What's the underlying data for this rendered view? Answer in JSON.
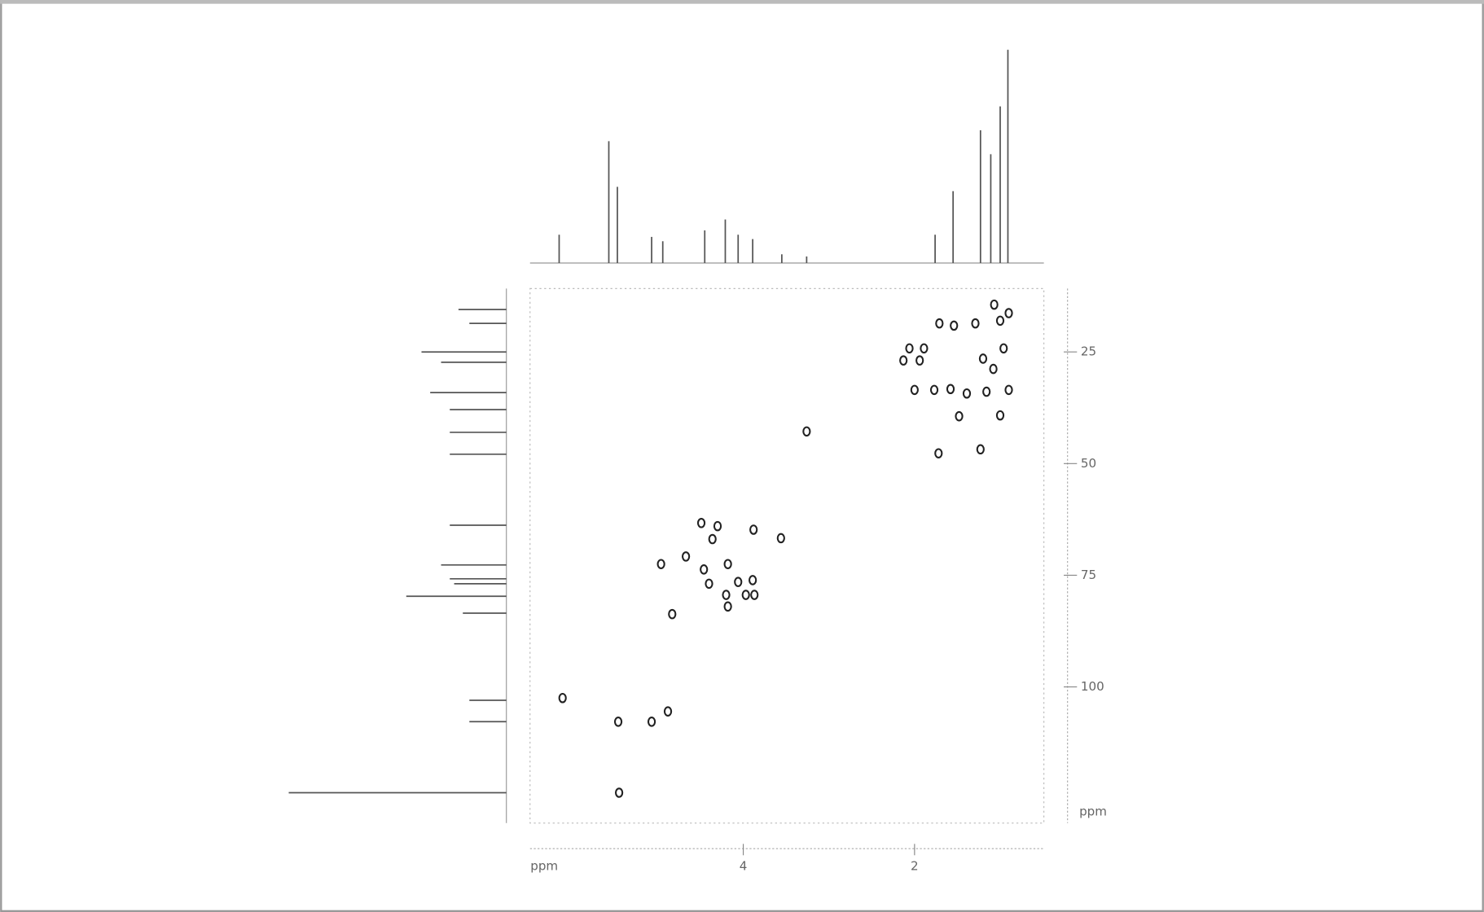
{
  "chart_data": [
    {
      "type": "scatter",
      "x_label": "ppm",
      "y_label": "ppm",
      "color": "#222222",
      "x": [
        1.07,
        0.9,
        1.0,
        1.71,
        1.54,
        1.29,
        1.89,
        2.06,
        2.13,
        1.94,
        0.96,
        1.2,
        1.08,
        2.0,
        1.77,
        1.58,
        1.39,
        1.16,
        0.9,
        1.48,
        1.0,
        3.26,
        1.72,
        1.23,
        4.49,
        4.3,
        4.36,
        3.88,
        3.56,
        4.67,
        4.96,
        4.18,
        4.46,
        4.4,
        4.06,
        3.89,
        4.2,
        3.97,
        3.87,
        4.18,
        4.83,
        6.11,
        5.46,
        5.07,
        4.88,
        5.45
      ],
      "values": [
        14.4,
        16.3,
        18.0,
        18.6,
        19.1,
        18.6,
        24.2,
        24.2,
        26.9,
        26.9,
        24.2,
        26.5,
        28.8,
        33.5,
        33.5,
        33.3,
        34.3,
        33.9,
        33.5,
        39.4,
        39.2,
        42.8,
        47.7,
        46.8,
        63.3,
        64.0,
        66.9,
        64.8,
        66.7,
        70.8,
        72.5,
        72.5,
        73.7,
        76.9,
        76.5,
        76.1,
        79.4,
        79.4,
        79.4,
        82.0,
        83.7,
        102.5,
        107.8,
        107.8,
        105.5,
        123.7
      ],
      "xlim": [
        6.49,
        0.49
      ],
      "ylim": [
        10.8,
        130.5
      ],
      "xticks": [
        4,
        2
      ],
      "yticks": [
        25,
        50,
        75,
        100
      ]
    },
    {
      "type": "stem",
      "orientation": "top",
      "color": "#555555",
      "x": [
        6.15,
        5.57,
        5.47,
        5.07,
        4.94,
        4.45,
        4.21,
        4.06,
        3.89,
        3.55,
        3.26,
        1.76,
        1.55,
        1.23,
        1.11,
        1.0,
        0.91
      ],
      "values": [
        13,
        56,
        35,
        12,
        10,
        15,
        20,
        13,
        11,
        4,
        3,
        13,
        33,
        61,
        50,
        72,
        98
      ],
      "xlim": [
        6.49,
        0.49
      ],
      "ylim": [
        0,
        100
      ]
    },
    {
      "type": "stem",
      "orientation": "left",
      "color": "#555555",
      "x": [
        15.5,
        18.6,
        25.0,
        27.3,
        34.1,
        37.9,
        43.0,
        47.9,
        63.8,
        72.7,
        75.8,
        76.9,
        79.7,
        83.5,
        103.0,
        107.8,
        123.7
      ],
      "values": [
        22,
        17,
        39,
        30,
        35,
        26,
        26,
        26,
        26,
        30,
        26,
        24,
        46,
        20,
        17,
        17,
        100
      ],
      "xlim": [
        10.8,
        130.5
      ],
      "ylim": [
        0,
        100
      ]
    }
  ]
}
